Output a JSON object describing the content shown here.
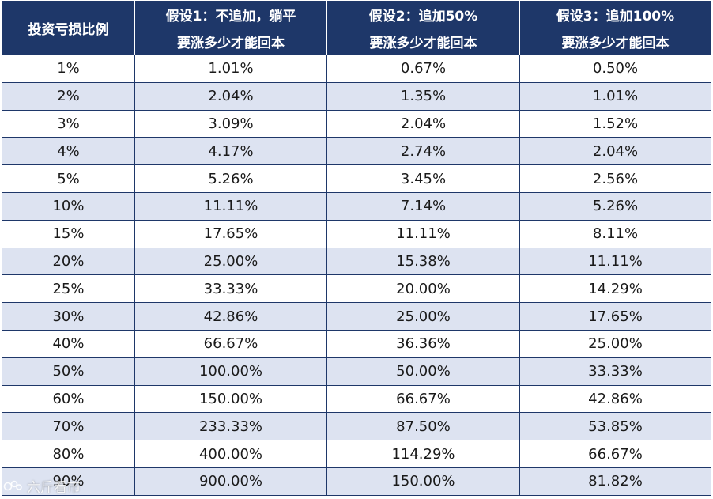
{
  "header": {
    "col0": "投资亏损比例",
    "col1_line1": "假设1：不追加，躺平",
    "col1_line2": "要涨多少才能回本",
    "col2_line1": "假设2：追加50%",
    "col2_line2": "要涨多少才能回本",
    "col3_line1": "假设3：追加100%",
    "col3_line2": "要涨多少才能回本"
  },
  "rows": [
    [
      "1%",
      "1.01%",
      "0.67%",
      "0.50%"
    ],
    [
      "2%",
      "2.04%",
      "1.35%",
      "1.01%"
    ],
    [
      "3%",
      "3.09%",
      "2.04%",
      "1.52%"
    ],
    [
      "4%",
      "4.17%",
      "2.74%",
      "2.04%"
    ],
    [
      "5%",
      "5.26%",
      "3.45%",
      "2.56%"
    ],
    [
      "10%",
      "11.11%",
      "7.14%",
      "5.26%"
    ],
    [
      "15%",
      "17.65%",
      "11.11%",
      "8.11%"
    ],
    [
      "20%",
      "25.00%",
      "15.38%",
      "11.11%"
    ],
    [
      "25%",
      "33.33%",
      "20.00%",
      "14.29%"
    ],
    [
      "30%",
      "42.86%",
      "25.00%",
      "17.65%"
    ],
    [
      "40%",
      "66.67%",
      "36.36%",
      "25.00%"
    ],
    [
      "50%",
      "100.00%",
      "50.00%",
      "33.33%"
    ],
    [
      "60%",
      "150.00%",
      "66.67%",
      "42.86%"
    ],
    [
      "70%",
      "233.33%",
      "87.50%",
      "53.85%"
    ],
    [
      "80%",
      "400.00%",
      "114.29%",
      "66.67%"
    ],
    [
      "90%",
      "900.00%",
      "150.00%",
      "81.82%"
    ]
  ],
  "colors": {
    "header_bg": "#1e3769",
    "stripe_bg": "#dde3f1",
    "row_bg": "#ffffff"
  },
  "watermark": {
    "text": "六斤看市",
    "icon": "watermark-logo-icon"
  }
}
